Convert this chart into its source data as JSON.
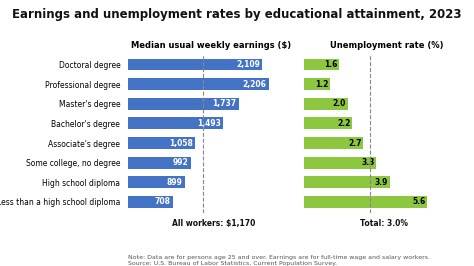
{
  "title": "Earnings and unemployment rates by educational attainment, 2023",
  "categories": [
    "Doctoral degree",
    "Professional degree",
    "Master's degree",
    "Bachelor's degree",
    "Associate's degree",
    "Some college, no degree",
    "High school diploma",
    "Less than a high school diploma"
  ],
  "earnings": [
    2109,
    2206,
    1737,
    1493,
    1058,
    992,
    899,
    708
  ],
  "unemployment": [
    1.6,
    1.2,
    2.0,
    2.2,
    2.7,
    3.3,
    3.9,
    5.6
  ],
  "earnings_label": "Median usual weekly earnings ($)",
  "unemployment_label": "Unemployment rate (%)",
  "all_workers_label": "All workers: $1,170",
  "total_label": "Total: 3.0%",
  "note": "Note: Data are for persons age 25 and over. Earnings are for full-time wage and salary workers.\nSource: U.S. Bureau of Labor Statistics, Current Population Survey.",
  "bar_color_earnings": "#4472C4",
  "bar_color_unemployment": "#8DC63F",
  "background_color": "#FFFFFF",
  "earnings_xlim": [
    0,
    2600
  ],
  "unemployment_xlim": [
    0,
    7.5
  ],
  "title_fontsize": 8.5,
  "label_fontsize": 6.0,
  "tick_fontsize": 5.5,
  "note_fontsize": 4.5,
  "bar_label_fontsize": 5.5
}
